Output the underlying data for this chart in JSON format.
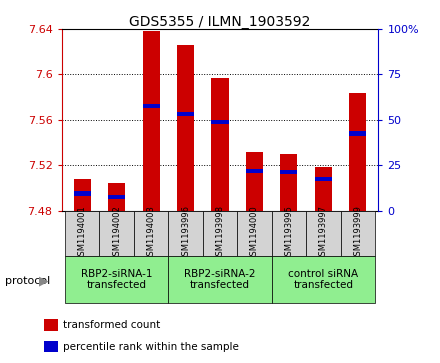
{
  "title": "GDS5355 / ILMN_1903592",
  "samples": [
    "GSM1194001",
    "GSM1194002",
    "GSM1194003",
    "GSM1193996",
    "GSM1193998",
    "GSM1194000",
    "GSM1193995",
    "GSM1193997",
    "GSM1193999"
  ],
  "bar_tops": [
    7.508,
    7.504,
    7.638,
    7.626,
    7.597,
    7.532,
    7.53,
    7.518,
    7.584
  ],
  "bar_base": 7.48,
  "blue_values": [
    7.495,
    7.492,
    7.572,
    7.565,
    7.558,
    7.515,
    7.514,
    7.508,
    7.548
  ],
  "ylim": [
    7.48,
    7.64
  ],
  "yticks": [
    7.48,
    7.52,
    7.56,
    7.6,
    7.64
  ],
  "ytick_labels": [
    "7.48",
    "7.52",
    "7.56",
    "7.6",
    "7.64"
  ],
  "y2lim": [
    0,
    100
  ],
  "y2ticks": [
    0,
    25,
    50,
    75,
    100
  ],
  "y2tick_labels": [
    "0",
    "25",
    "50",
    "75",
    "100%"
  ],
  "bar_color": "#cc0000",
  "blue_color": "#0000cc",
  "groups": [
    {
      "label": "RBP2-siRNA-1\ntransfected",
      "start": 0,
      "end": 3,
      "color": "#90ee90"
    },
    {
      "label": "RBP2-siRNA-2\ntransfected",
      "start": 3,
      "end": 6,
      "color": "#90ee90"
    },
    {
      "label": "control siRNA\ntransfected",
      "start": 6,
      "end": 9,
      "color": "#90ee90"
    }
  ],
  "protocol_label": "protocol",
  "legend_items": [
    {
      "color": "#cc0000",
      "label": "transformed count"
    },
    {
      "color": "#0000cc",
      "label": "percentile rank within the sample"
    }
  ],
  "bar_width": 0.5,
  "tick_color_left": "#cc0000",
  "tick_color_right": "#0000cc",
  "group_bg_color": "#d3d3d3"
}
